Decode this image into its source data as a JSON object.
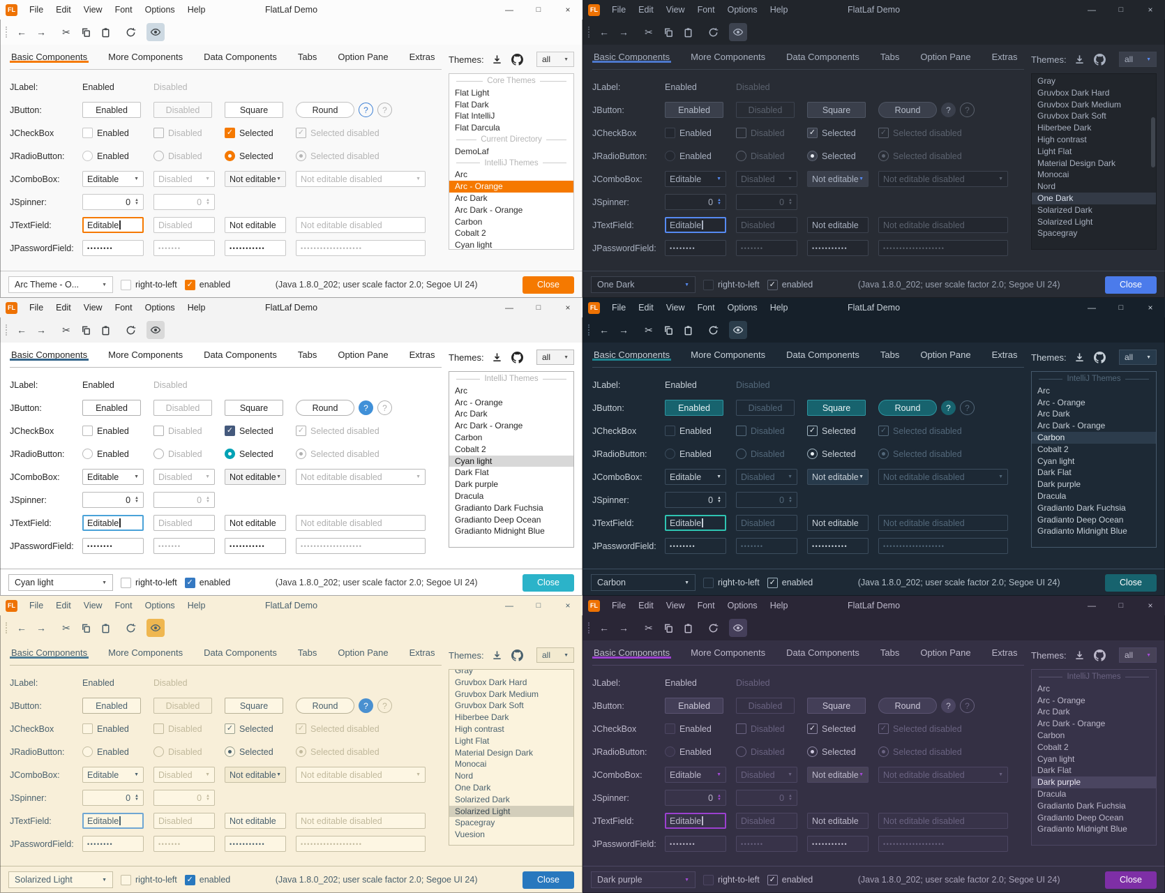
{
  "window": {
    "title": "FlatLaf Demo",
    "logo": "FL",
    "menus": [
      "File",
      "Edit",
      "View",
      "Font",
      "Options",
      "Help"
    ],
    "controls": {
      "minimize": "—",
      "maximize": "□",
      "close": "×"
    }
  },
  "icons": {
    "back": "←",
    "forward": "→",
    "cut": "✂",
    "copy": "copy-icon",
    "paste": "paste-icon",
    "refresh": "refresh-icon",
    "eye": "show-hidden-eye-icon",
    "download": "download-icon",
    "github": "github-icon",
    "combo_arrow": "▼",
    "spinner_up": "▲",
    "spinner_down": "▼",
    "check": "✓"
  },
  "tabs": [
    "Basic Components",
    "More Components",
    "Data Components",
    "Tabs",
    "Option Pane",
    "Extras"
  ],
  "themes_header": {
    "label": "Themes:",
    "filter": "all"
  },
  "rows": {
    "jlabel": {
      "label": "JLabel:",
      "enabled": "Enabled",
      "disabled": "Disabled"
    },
    "jbutton": {
      "label": "JButton:",
      "enabled": "Enabled",
      "disabled": "Disabled",
      "square": "Square",
      "round": "Round",
      "help": "?"
    },
    "jcheckbox": {
      "label": "JCheckBox",
      "enabled": "Enabled",
      "disabled": "Disabled",
      "selected": "Selected",
      "selected_disabled": "Selected disabled"
    },
    "jradio": {
      "label": "JRadioButton:",
      "enabled": "Enabled",
      "disabled": "Disabled",
      "selected": "Selected",
      "selected_disabled": "Selected disabled"
    },
    "jcombo": {
      "label": "JComboBox:",
      "editable": "Editable",
      "disabled": "Disabled",
      "not_editable": "Not editable",
      "not_editable_disabled": "Not editable disabled"
    },
    "jspinner": {
      "label": "JSpinner:",
      "value": "0"
    },
    "jtextfield": {
      "label": "JTextField:",
      "editable": "Editable",
      "disabled": "Disabled",
      "not_editable": "Not editable",
      "not_editable_disabled": "Not editable disabled"
    },
    "jpassword": {
      "label": "JPasswordField:",
      "dots1": "••••••••",
      "dots2": "•••••••",
      "dots3": "•••••••••••",
      "dots4": "•••••••••••••••••••"
    }
  },
  "bottom": {
    "rtl": "right-to-left",
    "enabled": "enabled",
    "java_info": "(Java 1.8.0_202;  user scale factor 2.0; Segoe UI 24)",
    "close": "Close"
  },
  "panels": [
    {
      "theme": "Arc - Orange",
      "combo_value": "Arc Theme - O...",
      "scrollbar": false,
      "clip_first": false,
      "list": [
        {
          "type": "separator",
          "label": "Core Themes"
        },
        {
          "type": "item",
          "label": "Flat Light"
        },
        {
          "type": "item",
          "label": "Flat Dark"
        },
        {
          "type": "item",
          "label": "Flat IntelliJ"
        },
        {
          "type": "item",
          "label": "Flat Darcula"
        },
        {
          "type": "separator",
          "label": "Current Directory"
        },
        {
          "type": "item",
          "label": "DemoLaf"
        },
        {
          "type": "separator",
          "label": "IntelliJ Themes"
        },
        {
          "type": "item",
          "label": "Arc"
        },
        {
          "type": "item",
          "label": "Arc - Orange",
          "selected": true
        },
        {
          "type": "item",
          "label": "Arc Dark"
        },
        {
          "type": "item",
          "label": "Arc Dark - Orange"
        },
        {
          "type": "item",
          "label": "Carbon"
        },
        {
          "type": "item",
          "label": "Cobalt 2"
        },
        {
          "type": "item",
          "label": "Cyan light"
        }
      ],
      "colors": {
        "bg": "#f9f9f9",
        "tb": "#fcfcfc",
        "fg": "#2b2b2b",
        "mut": "#b5b5b5",
        "bd": "#c8c8c8",
        "fld": "#ffffff",
        "btn": "#ffffff",
        "btnbd": "#c2c2c2",
        "btnfg": "#2b2b2b",
        "acc": "#f57900",
        "tabline": "#f57900",
        "chkbg": "#f57900",
        "chkbd": "#f57900",
        "chkfg": "#ffffff",
        "bchk": "#f57900",
        "bchkbd": "#f57900",
        "bchkfg": "#ffffff",
        "rad": "#ffffff",
        "radbg": "#f57900",
        "radbd": "#f57900",
        "listbg": "#ffffff",
        "listbd": "#c8c8c8",
        "selbg": "#f57900",
        "selfg": "#ffffff",
        "close": "#f57900",
        "eye": "#cdd9e2",
        "help1bg": "transparent",
        "help1fg": "#3b7fd4",
        "help1bd": "#3b7fd4",
        "spin": "#5a5a5a",
        "javac": "#3c3c3c",
        "winfg": "#444444",
        "toolfg": "#3e4245",
        "roc": "#f6f6f6"
      }
    },
    {
      "theme": "One Dark",
      "combo_value": "One Dark",
      "scrollbar": true,
      "clip_first": false,
      "list": [
        {
          "type": "item",
          "label": "Gray"
        },
        {
          "type": "item",
          "label": "Gruvbox Dark Hard"
        },
        {
          "type": "item",
          "label": "Gruvbox Dark Medium"
        },
        {
          "type": "item",
          "label": "Gruvbox Dark Soft"
        },
        {
          "type": "item",
          "label": "Hiberbee Dark"
        },
        {
          "type": "item",
          "label": "High contrast"
        },
        {
          "type": "item",
          "label": "Light Flat"
        },
        {
          "type": "item",
          "label": "Material Design Dark"
        },
        {
          "type": "item",
          "label": "Monocai"
        },
        {
          "type": "item",
          "label": "Nord"
        },
        {
          "type": "item",
          "label": "One Dark",
          "selected": true
        },
        {
          "type": "item",
          "label": "Solarized Dark"
        },
        {
          "type": "item",
          "label": "Solarized Light"
        },
        {
          "type": "item",
          "label": "Spacegray"
        }
      ],
      "colors": {
        "bg": "#282c34",
        "tb": "#21252b",
        "fg": "#a9b1c0",
        "mut": "#5b626e",
        "bd": "#3d434f",
        "fld": "#23272f",
        "btn": "#3a3f4b",
        "btnbd": "#4e5563",
        "btnfg": "#b6bdca",
        "acc": "#568af2",
        "tabline": "#4d78cc",
        "chkbg": "#3a3f4b",
        "chkbd": "#5b6270",
        "chkfg": "#e8ecf2",
        "bchk": "transparent",
        "bchkbd": "#5b6270",
        "bchkfg": "#e8ecf2",
        "rad": "#e8ecf2",
        "radbg": "#3a3f4b",
        "radbd": "#5b6270",
        "listbg": "#21252b",
        "listbd": "#1a1d22",
        "selbg": "#333a46",
        "selfg": "#dbe2ee",
        "close": "#4b7beb",
        "eye": "#3d434f",
        "help1bg": "#3a3f4b",
        "help1fg": "#a9b1c0",
        "help1bd": "transparent",
        "spin": "#568af2",
        "javac": "#98a0af",
        "winfg": "#b4bbc7",
        "toolfg": "#a9b1c0",
        "roc": "#3a3f4b"
      }
    },
    {
      "theme": "Cyan light",
      "combo_value": "Cyan light",
      "scrollbar": false,
      "clip_first": false,
      "list": [
        {
          "type": "separator",
          "label": "IntelliJ Themes"
        },
        {
          "type": "item",
          "label": "Arc"
        },
        {
          "type": "item",
          "label": "Arc - Orange"
        },
        {
          "type": "item",
          "label": "Arc Dark"
        },
        {
          "type": "item",
          "label": "Arc Dark - Orange"
        },
        {
          "type": "item",
          "label": "Carbon"
        },
        {
          "type": "item",
          "label": "Cobalt 2"
        },
        {
          "type": "item",
          "label": "Cyan light",
          "selected": true
        },
        {
          "type": "item",
          "label": "Dark Flat"
        },
        {
          "type": "item",
          "label": "Dark purple"
        },
        {
          "type": "item",
          "label": "Dracula"
        },
        {
          "type": "item",
          "label": "Gradianto Dark Fuchsia"
        },
        {
          "type": "item",
          "label": "Gradianto Deep Ocean"
        },
        {
          "type": "item",
          "label": "Gradianto Midnight Blue"
        }
      ],
      "colors": {
        "bg": "#ffffff",
        "tb": "#f3f3f3",
        "fg": "#242424",
        "mut": "#b0b0b0",
        "bd": "#b9b9b9",
        "fld": "#ffffff",
        "btn": "#ffffff",
        "btnbd": "#b0b0b0",
        "btnfg": "#242424",
        "acc": "#4aa2d8",
        "tabline": "#33658a",
        "chkbg": "#44597c",
        "chkbd": "#44597c",
        "chkfg": "#ffffff",
        "bchk": "#3579c2",
        "bchkbd": "#3579c2",
        "bchkfg": "#ffffff",
        "rad": "#ffffff",
        "radbg": "#00a2b5",
        "radbd": "#00a2b5",
        "listbg": "#ffffff",
        "listbd": "#b0b0b0",
        "selbg": "#d8d8d8",
        "selfg": "#111111",
        "close": "#2bb3c9",
        "eye": "#d9d9d9",
        "help1bg": "#4090d8",
        "help1fg": "#ffffff",
        "help1bd": "transparent",
        "spin": "#555555",
        "javac": "#3c3c3c",
        "winfg": "#444444",
        "toolfg": "#3e4245",
        "roc": "#f3f3f3"
      }
    },
    {
      "theme": "Carbon",
      "combo_value": "Carbon",
      "scrollbar": false,
      "clip_first": false,
      "list": [
        {
          "type": "separator",
          "label": "IntelliJ Themes"
        },
        {
          "type": "item",
          "label": "Arc"
        },
        {
          "type": "item",
          "label": "Arc - Orange"
        },
        {
          "type": "item",
          "label": "Arc Dark"
        },
        {
          "type": "item",
          "label": "Arc Dark - Orange"
        },
        {
          "type": "item",
          "label": "Carbon",
          "selected": true
        },
        {
          "type": "item",
          "label": "Cobalt 2"
        },
        {
          "type": "item",
          "label": "Cyan light"
        },
        {
          "type": "item",
          "label": "Dark Flat"
        },
        {
          "type": "item",
          "label": "Dark purple"
        },
        {
          "type": "item",
          "label": "Dracula"
        },
        {
          "type": "item",
          "label": "Gradianto Dark Fuchsia"
        },
        {
          "type": "item",
          "label": "Gradianto Deep Ocean"
        },
        {
          "type": "item",
          "label": "Gradianto Midnight Blue"
        }
      ],
      "colors": {
        "bg": "#1d2935",
        "tb": "#16202a",
        "fg": "#c7d0d8",
        "mut": "#53687a",
        "bd": "#3c4d5e",
        "fld": "#1d2935",
        "btn": "#17636e",
        "btnbd": "#2e95a0",
        "btnfg": "#e9f3f5",
        "acc": "#2fc4b2",
        "tabline": "#1f838e",
        "chkbg": "transparent",
        "chkbd": "#9fb3bf",
        "chkfg": "#e9f1f5",
        "bchk": "transparent",
        "bchkbd": "#9fb3bf",
        "bchkfg": "#e9f1f5",
        "rad": "#e9f1f5",
        "radbg": "transparent",
        "radbd": "#9fb3bf",
        "listbg": "#1d2935",
        "listbd": "#46596c",
        "selbg": "#2c3c4c",
        "selfg": "#e9f1f5",
        "close": "#17636e",
        "eye": "#2b3d4b",
        "help1bg": "#17636e",
        "help1fg": "#dff3f5",
        "help1bd": "transparent",
        "spin": "#cfd8de",
        "javac": "#b3bfc9",
        "winfg": "#c7d0d8",
        "toolfg": "#c7d0d8",
        "roc": "#273a4b"
      }
    },
    {
      "theme": "Solarized Light",
      "combo_value": "Solarized Light",
      "scrollbar": false,
      "clip_first": true,
      "list": [
        {
          "type": "item",
          "label": "Gray"
        },
        {
          "type": "item",
          "label": "Gruvbox Dark Hard"
        },
        {
          "type": "item",
          "label": "Gruvbox Dark Medium"
        },
        {
          "type": "item",
          "label": "Gruvbox Dark Soft"
        },
        {
          "type": "item",
          "label": "Hiberbee Dark"
        },
        {
          "type": "item",
          "label": "High contrast"
        },
        {
          "type": "item",
          "label": "Light Flat"
        },
        {
          "type": "item",
          "label": "Material Design Dark"
        },
        {
          "type": "item",
          "label": "Monocai"
        },
        {
          "type": "item",
          "label": "Nord"
        },
        {
          "type": "item",
          "label": "One Dark"
        },
        {
          "type": "item",
          "label": "Solarized Dark"
        },
        {
          "type": "item",
          "label": "Solarized Light",
          "selected": true
        },
        {
          "type": "item",
          "label": "Spacegray"
        },
        {
          "type": "item",
          "label": "Vuesion"
        }
      ],
      "colors": {
        "bg": "#f8efd9",
        "tb": "#f8efd9",
        "fg": "#49606d",
        "mut": "#c1b99c",
        "bd": "#c6bfa4",
        "fld": "#fdf6e3",
        "btn": "#fdf6e3",
        "btnbd": "#b9b298",
        "btnfg": "#49606d",
        "acc": "#6fa6d3",
        "tabline": "#4c7c96",
        "chkbg": "#fdf6e3",
        "chkbd": "#9aa090",
        "chkfg": "#49606d",
        "bchk": "#2878be",
        "bchkbd": "#2878be",
        "bchkfg": "#ffffff",
        "rad": "#49606d",
        "radbg": "#fdf6e3",
        "radbd": "#9aa090",
        "listbg": "#fbf3dd",
        "listbd": "#c6bfa4",
        "selbg": "#d3cebb",
        "selfg": "#3c4a52",
        "close": "#2878be",
        "eye": "#efb750",
        "help1bg": "#4a90d0",
        "help1fg": "#ffffff",
        "help1bd": "transparent",
        "spin": "#49606d",
        "javac": "#49606d",
        "winfg": "#49606d",
        "toolfg": "#49606d",
        "roc": "#f3ead0"
      }
    },
    {
      "theme": "Dark purple",
      "combo_value": "Dark purple",
      "scrollbar": false,
      "clip_first": false,
      "list": [
        {
          "type": "separator",
          "label": "IntelliJ Themes"
        },
        {
          "type": "item",
          "label": "Arc"
        },
        {
          "type": "item",
          "label": "Arc - Orange"
        },
        {
          "type": "item",
          "label": "Arc Dark"
        },
        {
          "type": "item",
          "label": "Arc Dark - Orange"
        },
        {
          "type": "item",
          "label": "Carbon"
        },
        {
          "type": "item",
          "label": "Cobalt 2"
        },
        {
          "type": "item",
          "label": "Cyan light"
        },
        {
          "type": "item",
          "label": "Dark Flat"
        },
        {
          "type": "item",
          "label": "Dark purple",
          "selected": true
        },
        {
          "type": "item",
          "label": "Dracula"
        },
        {
          "type": "item",
          "label": "Gradianto Dark Fuchsia"
        },
        {
          "type": "item",
          "label": "Gradianto Deep Ocean"
        },
        {
          "type": "item",
          "label": "Gradianto Midnight Blue"
        }
      ],
      "colors": {
        "bg": "#343044",
        "tb": "#2a2636",
        "fg": "#bdb9cb",
        "mut": "#6a6381",
        "bd": "#4d4763",
        "fld": "#383349",
        "btn": "#433e57",
        "btnbd": "#5b5472",
        "btnfg": "#cbc7d8",
        "acc": "#9c40d0",
        "tabline": "#9c40d0",
        "chkbg": "transparent",
        "chkbd": "#8a84a0",
        "chkfg": "#e9e6f2",
        "bchk": "transparent",
        "bchkbd": "#8a84a0",
        "bchkfg": "#e9e6f2",
        "rad": "#cfcadf",
        "radbg": "transparent",
        "radbd": "#8a84a0",
        "listbg": "#373349",
        "listbd": "#4d4763",
        "selbg": "#4a4560",
        "selfg": "#edeaf5",
        "close": "#7e2fa6",
        "eye": "#453f5a",
        "help1bg": "#4a4460",
        "help1fg": "#bdb9cb",
        "help1bd": "transparent",
        "spin": "#a54ad8",
        "javac": "#a7a2b8",
        "winfg": "#bdb9cb",
        "toolfg": "#bdb9cb",
        "roc": "#474257"
      }
    }
  ]
}
